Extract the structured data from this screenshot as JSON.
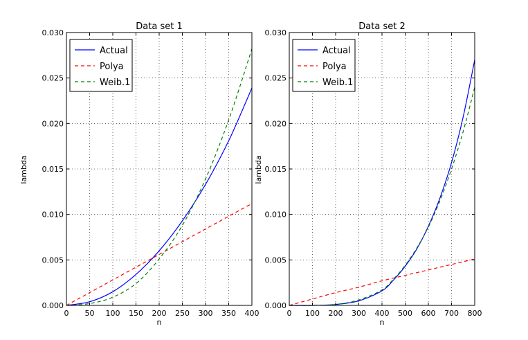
{
  "chart_data": [
    {
      "type": "line",
      "title": "Data set 1",
      "xlabel": "n",
      "ylabel": "lambda",
      "xlim": [
        0,
        400
      ],
      "ylim": [
        0,
        0.03
      ],
      "x_ticks": [
        "0",
        "50",
        "100",
        "150",
        "200",
        "250",
        "300",
        "350",
        "400"
      ],
      "y_ticks": [
        "0.000",
        "0.005",
        "0.010",
        "0.015",
        "0.020",
        "0.025",
        "0.030"
      ],
      "grid": true,
      "legend_position": "top-left",
      "series": [
        {
          "name": "Actual",
          "color": "#0000ff",
          "dash": "solid",
          "x": [
            0,
            50,
            100,
            150,
            200,
            250,
            300,
            350,
            400
          ],
          "y": [
            0.0,
            0.0004,
            0.0015,
            0.0034,
            0.006,
            0.0093,
            0.0133,
            0.0181,
            0.0239
          ]
        },
        {
          "name": "Polya",
          "color": "#ff0000",
          "dash": "dashed",
          "x": [
            0,
            50,
            100,
            150,
            200,
            250,
            300,
            350,
            400
          ],
          "y": [
            0.0,
            0.0014,
            0.0028,
            0.0042,
            0.0056,
            0.007,
            0.0084,
            0.0098,
            0.0112
          ]
        },
        {
          "name": "Weib.1",
          "color": "#008000",
          "dash": "dashed",
          "x": [
            0,
            50,
            100,
            150,
            200,
            250,
            300,
            350,
            400
          ],
          "y": [
            0.0,
            0.0002,
            0.0009,
            0.0024,
            0.0051,
            0.0088,
            0.0139,
            0.0204,
            0.0282
          ]
        }
      ]
    },
    {
      "type": "line",
      "title": "Data set 2",
      "xlabel": "n",
      "ylabel": "lambda",
      "xlim": [
        0,
        800
      ],
      "ylim": [
        0,
        0.03
      ],
      "x_ticks": [
        "0",
        "100",
        "200",
        "300",
        "400",
        "500",
        "600",
        "700",
        "800"
      ],
      "y_ticks": [
        "0.000",
        "0.005",
        "0.010",
        "0.015",
        "0.020",
        "0.025",
        "0.030"
      ],
      "grid": true,
      "legend_position": "top-left",
      "series": [
        {
          "name": "Actual",
          "color": "#0000ff",
          "dash": "solid",
          "x": [
            0,
            100,
            200,
            300,
            400,
            450,
            500,
            550,
            600,
            650,
            700,
            750,
            800
          ],
          "y": [
            0.0,
            0.0,
            0.0001,
            0.0005,
            0.0016,
            0.0028,
            0.0043,
            0.0062,
            0.0087,
            0.0118,
            0.0157,
            0.0207,
            0.027
          ]
        },
        {
          "name": "Polya",
          "color": "#ff0000",
          "dash": "dashed",
          "x": [
            0,
            100,
            200,
            300,
            400,
            500,
            600,
            700,
            800
          ],
          "y": [
            0.0,
            0.0007,
            0.0014,
            0.002,
            0.0027,
            0.0033,
            0.0039,
            0.0045,
            0.0051
          ]
        },
        {
          "name": "Weib.1",
          "color": "#008000",
          "dash": "dashed",
          "x": [
            0,
            100,
            200,
            300,
            400,
            450,
            500,
            550,
            600,
            650,
            700,
            750,
            800
          ],
          "y": [
            0.0,
            0.0,
            0.0001,
            0.0006,
            0.0017,
            0.0029,
            0.0044,
            0.0063,
            0.0086,
            0.0115,
            0.015,
            0.0191,
            0.024
          ]
        }
      ]
    }
  ]
}
